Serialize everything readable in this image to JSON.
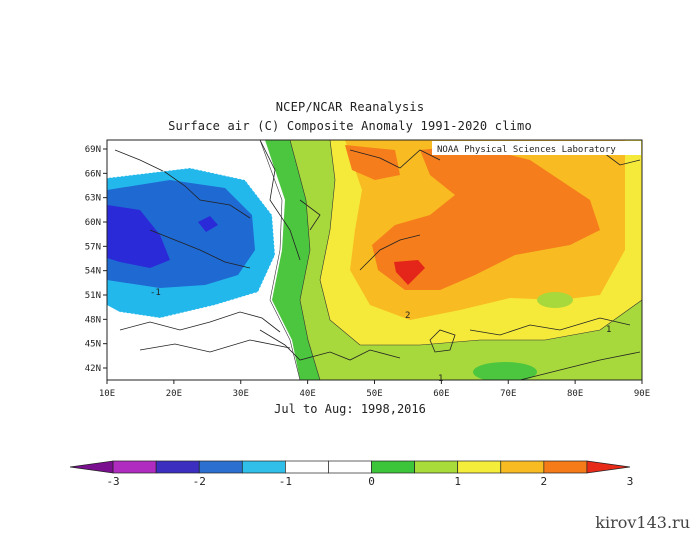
{
  "title": "NCEP/NCAR Reanalysis",
  "subtitle": "Surface air (C) Composite Anomaly 1991-2020 climo",
  "period": "Jul to Aug: 1998,2016",
  "attribution": "NOAA Physical Sciences Laboratory",
  "watermark": "kirov143.ru",
  "map": {
    "lon_ticks": [
      "10E",
      "20E",
      "30E",
      "40E",
      "50E",
      "60E",
      "70E",
      "80E",
      "90E"
    ],
    "lat_ticks": [
      "69N",
      "66N",
      "63N",
      "60N",
      "57N",
      "54N",
      "51N",
      "48N",
      "45N",
      "42N"
    ],
    "contour_labels": [
      "-1",
      "2",
      "1",
      "1"
    ]
  },
  "colorbar": {
    "labels": [
      "-3",
      "-2",
      "-1",
      "0",
      "1",
      "2",
      "3"
    ],
    "colors": [
      "#7a0f8f",
      "#b02cc0",
      "#3c2fc0",
      "#2b6fd0",
      "#2fbfe8",
      "#ffffff",
      "#ffffff",
      "#3cc43a",
      "#a8dc3a",
      "#f4ee3a",
      "#f8bc22",
      "#f57a18",
      "#e82a18"
    ]
  },
  "colors": {
    "deep_blue": "#2a2ad8",
    "blue": "#1f69d2",
    "light_blue": "#23b8ec",
    "green": "#4cc63f",
    "yellow_green": "#a8d93c",
    "yellow": "#f5ea3a",
    "light_orange": "#f8bb22",
    "orange": "#f57d1c",
    "red": "#e4261a"
  }
}
